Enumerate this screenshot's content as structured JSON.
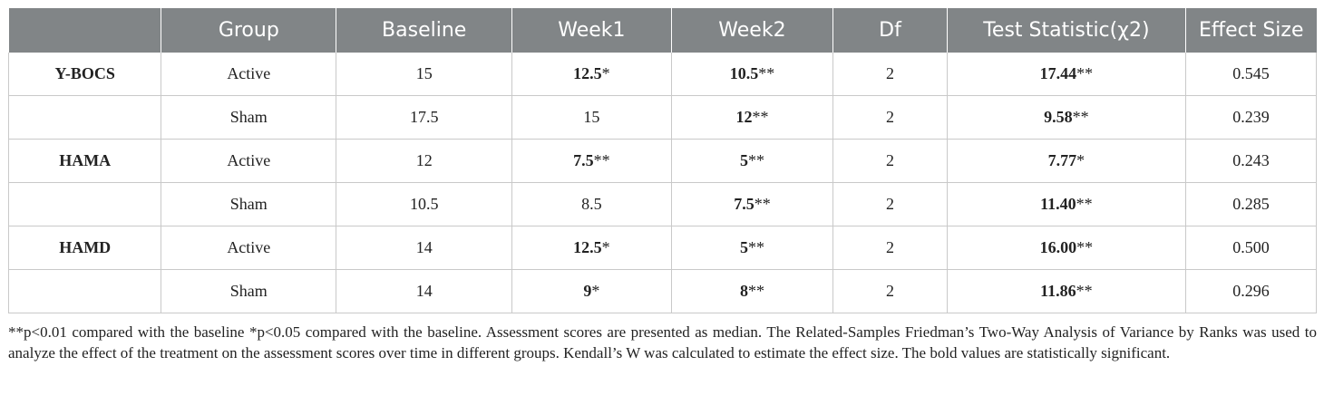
{
  "table": {
    "headers": [
      "",
      "Group",
      "Baseline",
      "Week1",
      "Week2",
      "Df",
      "Test Statistic(χ2)",
      "Effect Size"
    ],
    "rows": [
      {
        "scale": "Y-BOCS",
        "group": "Active",
        "baseline": "15",
        "week1": {
          "value": "12.5",
          "mark": "*"
        },
        "week2": {
          "value": "10.5",
          "mark": "**"
        },
        "df": "2",
        "stat": {
          "value": "17.44",
          "mark": "**"
        },
        "effect": "0.545"
      },
      {
        "scale": "",
        "group": "Sham",
        "baseline": "17.5",
        "week1": {
          "value": "15",
          "mark": ""
        },
        "week2": {
          "value": "12",
          "mark": "**"
        },
        "df": "2",
        "stat": {
          "value": "9.58",
          "mark": "**"
        },
        "effect": "0.239"
      },
      {
        "scale": "HAMA",
        "group": "Active",
        "baseline": "12",
        "week1": {
          "value": "7.5",
          "mark": "**"
        },
        "week2": {
          "value": "5",
          "mark": "**"
        },
        "df": "2",
        "stat": {
          "value": "7.77",
          "mark": "*"
        },
        "effect": "0.243"
      },
      {
        "scale": "",
        "group": "Sham",
        "baseline": "10.5",
        "week1": {
          "value": "8.5",
          "mark": ""
        },
        "week2": {
          "value": "7.5",
          "mark": "**"
        },
        "df": "2",
        "stat": {
          "value": "11.40",
          "mark": "**"
        },
        "effect": "0.285"
      },
      {
        "scale": "HAMD",
        "group": "Active",
        "baseline": "14",
        "week1": {
          "value": "12.5",
          "mark": "*"
        },
        "week2": {
          "value": "5",
          "mark": "**"
        },
        "df": "2",
        "stat": {
          "value": "16.00",
          "mark": "**"
        },
        "effect": "0.500"
      },
      {
        "scale": "",
        "group": "Sham",
        "baseline": "14",
        "week1": {
          "value": "9",
          "mark": "*"
        },
        "week2": {
          "value": "8",
          "mark": "**"
        },
        "df": "2",
        "stat": {
          "value": "11.86",
          "mark": "**"
        },
        "effect": "0.296"
      }
    ]
  },
  "footnote": "**p<0.01 compared with the baseline *p<0.05 compared with the baseline. Assessment scores are presented as median. The Related-Samples Friedman’s Two-Way Analysis of Variance by Ranks was used to analyze the effect of the treatment on the assessment scores over time in different groups. Kendall’s W was calculated to estimate the effect size. The bold values are statistically significant."
}
